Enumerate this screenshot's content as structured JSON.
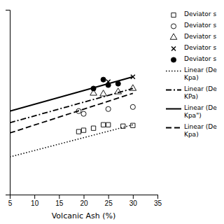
{
  "chart_data": {
    "type": "scatter",
    "xlabel": "Volcanic Ash (%)",
    "color": "black",
    "xlim": [
      5,
      35
    ],
    "xticks": [
      5,
      10,
      15,
      20,
      25,
      30,
      35
    ],
    "ylim": [
      0.5,
      3.2
    ],
    "yticks": [],
    "tick_labels": "x",
    "grid": false,
    "legend": "right",
    "series": [
      {
        "name": "Deviator s",
        "type": "scatter",
        "marker": "square",
        "x": [
          19,
          20,
          22,
          24,
          25,
          28,
          30
        ],
        "values": [
          1.42,
          1.44,
          1.47,
          1.52,
          1.52,
          1.5,
          1.51
        ]
      },
      {
        "name": "Deviator s",
        "type": "scatter",
        "marker": "circle",
        "x": [
          19,
          20,
          25,
          30
        ],
        "values": [
          1.72,
          1.68,
          1.75,
          1.78
        ]
      },
      {
        "name": "Deviator s",
        "type": "scatter",
        "marker": "triangle",
        "x": [
          22,
          24,
          27,
          30
        ],
        "values": [
          1.98,
          1.97,
          2.0,
          2.05
        ]
      },
      {
        "name": "Deviator s",
        "type": "scatter",
        "marker": "x",
        "x": [
          25,
          30
        ],
        "values": [
          2.15,
          2.22
        ]
      },
      {
        "name": "Deviator s",
        "type": "scatter",
        "marker": "filled-circle",
        "x": [
          22,
          24,
          25,
          27
        ],
        "values": [
          2.05,
          2.18,
          2.1,
          2.12
        ]
      },
      {
        "name": "Linear (De\nKpa)",
        "type": "line",
        "line_style": "dotted",
        "x": [
          5,
          30
        ],
        "values": [
          1.05,
          1.52
        ]
      },
      {
        "name": "Linear (De\nKPa)",
        "type": "line",
        "line_style": "dashdot",
        "x": [
          5,
          30
        ],
        "values": [
          1.55,
          2.05
        ]
      },
      {
        "name": "Linear (De\nKpa\")",
        "type": "line",
        "line_style": "solid",
        "x": [
          5,
          30
        ],
        "values": [
          1.72,
          2.22
        ]
      },
      {
        "name": "Linear (De\nKpa)",
        "type": "line",
        "line_style": "dashed",
        "x": [
          5,
          30
        ],
        "values": [
          1.4,
          1.98
        ]
      }
    ]
  }
}
